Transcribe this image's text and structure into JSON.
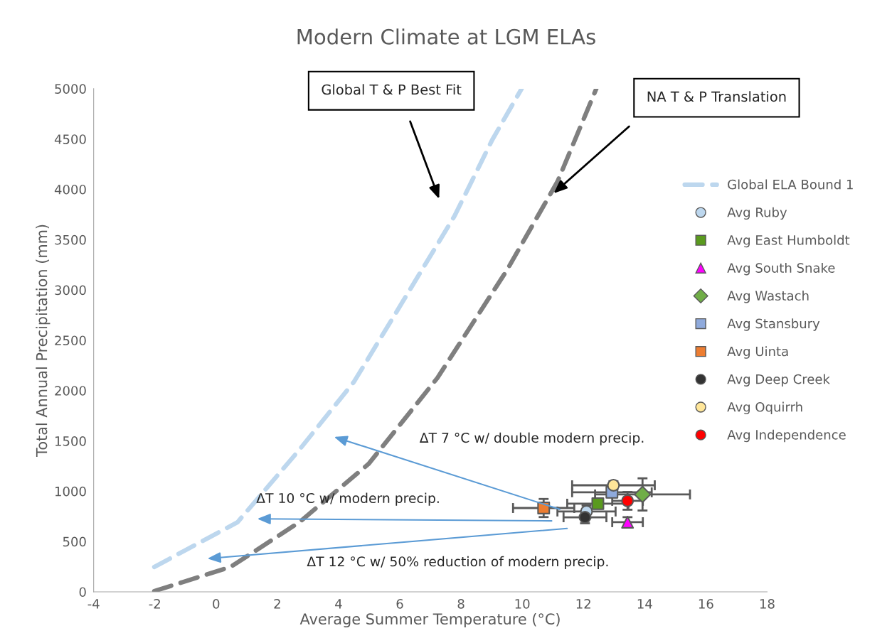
{
  "chart_data": {
    "type": "scatter",
    "title": "Modern Climate at LGM ELAs",
    "xlabel": "Average Summer Temperature (°C)",
    "ylabel": "Total Annual Precipitation (mm)",
    "xlim": [
      -4,
      18
    ],
    "xticks": [
      -4,
      -2,
      0,
      2,
      4,
      6,
      8,
      10,
      12,
      14,
      16,
      18
    ],
    "ylim": [
      0,
      5000
    ],
    "yticks": [
      0,
      500,
      1000,
      1500,
      2000,
      2500,
      3000,
      3500,
      4000,
      4500,
      5000
    ],
    "grid": false,
    "legend": "right",
    "series": [
      {
        "name": "Global ELA Bound 1",
        "type": "line",
        "line_style": "dashed",
        "marker": "none",
        "color": "#bdd7ee",
        "x": [
          -2.02,
          0.7,
          2.72,
          4.51,
          6.09,
          7.79,
          9.02,
          9.98
        ],
        "values": [
          247,
          692,
          1412,
          2090,
          2881,
          3736,
          4492,
          5000
        ]
      },
      {
        "type": "line",
        "line_style": "dashed",
        "marker": "none",
        "color": "#7f7f7f",
        "x": [
          -2.02,
          0.47,
          2.72,
          4.98,
          7.23,
          9.49,
          11.16,
          12.42
        ],
        "values": [
          7,
          247,
          692,
          1271,
          2126,
          3192,
          4082,
          5000
        ]
      },
      {
        "name": "Avg Ruby",
        "marker": "circle",
        "color": "#bdd7ee",
        "x": [
          12.1
        ],
        "values": [
          798
        ],
        "errors": [
          60
        ],
        "xerrors": [
          0.95
        ]
      },
      {
        "name": "Avg East Humboldt",
        "marker": "square",
        "color": "#5a9a1e",
        "x": [
          12.47
        ],
        "values": [
          876
        ],
        "errors": [
          50
        ],
        "xerrors": [
          1.0
        ]
      },
      {
        "name": "Avg South Snake",
        "marker": "triangle",
        "color": "#ff00ff",
        "x": [
          13.44
        ],
        "values": [
          692
        ],
        "errors": [
          50
        ],
        "xerrors": [
          0.5
        ]
      },
      {
        "name": "Avg Wastach",
        "marker": "diamond",
        "color": "#70ad47",
        "x": [
          13.93
        ],
        "values": [
          968
        ],
        "errors": [
          160
        ],
        "xerrors": [
          1.55
        ]
      },
      {
        "name": "Avg Stansbury",
        "marker": "square",
        "color": "#8faadc",
        "x": [
          12.93
        ],
        "values": [
          989
        ],
        "errors": [
          50
        ],
        "xerrors": [
          1.3
        ]
      },
      {
        "name": "Avg Uinta",
        "marker": "square",
        "color": "#ed7d31",
        "x": [
          10.7
        ],
        "values": [
          833
        ],
        "errors": [
          90
        ],
        "xerrors": [
          1.0
        ]
      },
      {
        "name": "Avg Deep Creek",
        "marker": "circle",
        "color": "#333333",
        "x": [
          12.05
        ],
        "values": [
          741
        ],
        "errors": [
          60
        ],
        "xerrors": [
          0.7
        ]
      },
      {
        "name": "Avg Oquirrh",
        "marker": "circle",
        "color": "#ffe699",
        "x": [
          12.98
        ],
        "values": [
          1059
        ],
        "errors": [
          40
        ],
        "xerrors": [
          1.35
        ]
      },
      {
        "name": "Avg Independence",
        "marker": "circle",
        "color": "#ff0000",
        "x": [
          13.44
        ],
        "values": [
          904
        ],
        "errors": [
          88
        ],
        "xerrors": [
          0.5
        ]
      }
    ],
    "annotations": [
      "Global T & P Best Fit",
      "NA T & P Translation",
      "ΔT 7 °C w/ double modern precip.",
      "ΔT 10 °C w/ modern precip.",
      "ΔT 12 °C w/ 50% reduction of modern precip."
    ]
  }
}
